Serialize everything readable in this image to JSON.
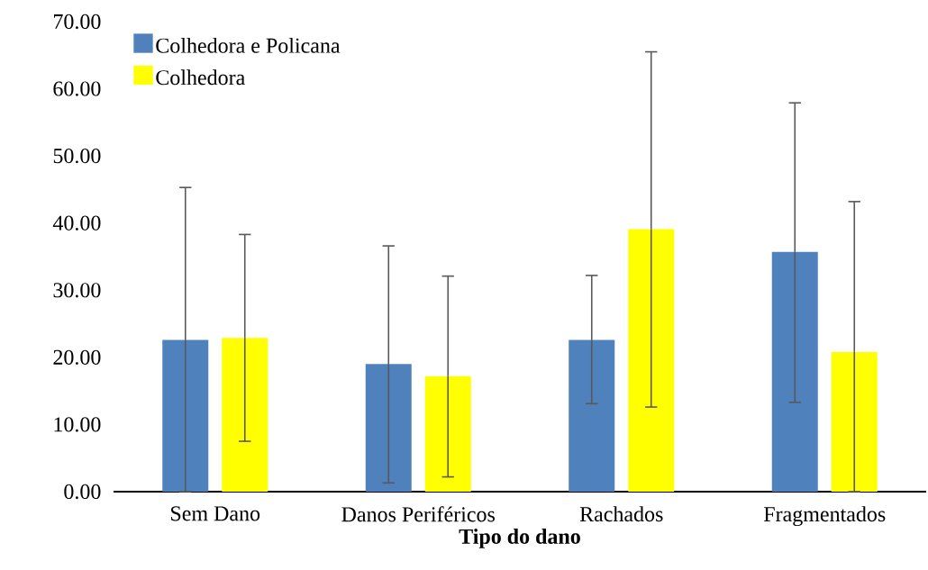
{
  "chart_data": {
    "type": "bar",
    "xlabel": "Tipo do dano",
    "categories": [
      "Sem Dano",
      "Danos Periféricos",
      "Rachados",
      "Fragmentados"
    ],
    "series": [
      {
        "name": "Colhedora e Policana",
        "color": "#4f81bd",
        "values": [
          22.6,
          19.0,
          22.6,
          35.7
        ],
        "errors": [
          [
            0,
            45.3
          ],
          [
            1.3,
            36.6
          ],
          [
            13.1,
            32.2
          ],
          [
            13.3,
            57.9
          ]
        ]
      },
      {
        "name": "Colhedora",
        "color": "#ffff00",
        "values": [
          22.9,
          17.2,
          39.1,
          20.8
        ],
        "errors": [
          [
            7.5,
            38.3
          ],
          [
            2.2,
            32.1
          ],
          [
            12.6,
            65.5
          ],
          [
            0,
            43.2
          ]
        ]
      }
    ],
    "ylim": [
      0,
      70
    ],
    "yticks": [
      {
        "value": 0,
        "label": "0.00"
      },
      {
        "value": 10,
        "label": "10.00"
      },
      {
        "value": 20,
        "label": "20.00"
      },
      {
        "value": 30,
        "label": "30.00"
      },
      {
        "value": 40,
        "label": "40.00"
      },
      {
        "value": 50,
        "label": "50.00"
      },
      {
        "value": 60,
        "label": "60.00"
      },
      {
        "value": 70,
        "label": "70.00"
      }
    ],
    "legend": "top left",
    "grid": false
  }
}
